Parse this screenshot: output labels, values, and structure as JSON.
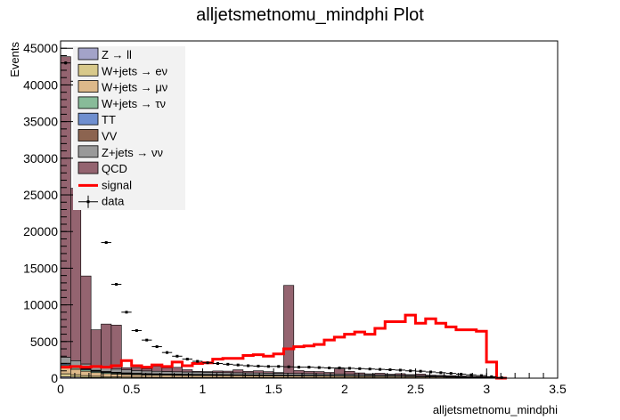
{
  "chart_data": {
    "type": "bar",
    "title": "alljetsmetnomu_mindphi Plot",
    "xlabel": "alljetsmetnomu_mindphi",
    "ylabel": "Events",
    "xlim": [
      0,
      3.5
    ],
    "ylim": [
      0,
      46000
    ],
    "x_ticks": [
      "0",
      "0.5",
      "1",
      "1.5",
      "2",
      "2.5",
      "3",
      "3.5"
    ],
    "y_ticks": [
      "0",
      "5000",
      "10000",
      "15000",
      "20000",
      "25000",
      "30000",
      "35000",
      "40000",
      "45000"
    ],
    "bin_edges": [
      0,
      0.0714,
      0.1428,
      0.2142,
      0.2856,
      0.357,
      0.4284,
      0.4998,
      0.5712,
      0.6426,
      0.714,
      0.7854,
      0.8568,
      0.9282,
      0.9996,
      1.071,
      1.1424,
      1.2138,
      1.2852,
      1.3566,
      1.428,
      1.4994,
      1.5708,
      1.6422,
      1.7136,
      1.785,
      1.8564,
      1.9278,
      1.9992,
      2.0706,
      2.142,
      2.2134,
      2.2848,
      2.3562,
      2.4276,
      2.499,
      2.5704,
      2.6418,
      2.7132,
      2.7846,
      2.856,
      2.9274,
      2.9988,
      3.0702,
      3.1416
    ],
    "stacked": [
      {
        "name": "Z → ll",
        "color": "#a3a3c8",
        "values": [
          200,
          150,
          110,
          80,
          60,
          50,
          40,
          35,
          30,
          28,
          26,
          24,
          22,
          20,
          20,
          20,
          19,
          19,
          18,
          18,
          18,
          18,
          18,
          17,
          17,
          17,
          16,
          16,
          16,
          15,
          15,
          14,
          14,
          13,
          12,
          11,
          10,
          9,
          8,
          7,
          6,
          5,
          4,
          2
        ]
      },
      {
        "name": "W+jets → eν",
        "color": "#d8c98a",
        "values": [
          400,
          320,
          240,
          180,
          150,
          130,
          110,
          100,
          95,
          90,
          85,
          80,
          80,
          78,
          76,
          75,
          74,
          72,
          70,
          70,
          68,
          66,
          64,
          62,
          60,
          58,
          56,
          54,
          52,
          50,
          48,
          46,
          44,
          40,
          38,
          35,
          32,
          28,
          24,
          20,
          16,
          12,
          8,
          4
        ]
      },
      {
        "name": "W+jets → μν",
        "color": "#ddb98a",
        "values": [
          900,
          750,
          600,
          500,
          420,
          380,
          350,
          330,
          310,
          300,
          290,
          280,
          275,
          270,
          265,
          260,
          255,
          250,
          245,
          240,
          235,
          230,
          225,
          220,
          215,
          210,
          205,
          200,
          195,
          190,
          185,
          180,
          170,
          160,
          150,
          140,
          130,
          115,
          100,
          85,
          70,
          50,
          30,
          15
        ]
      },
      {
        "name": "W+jets → τν",
        "color": "#88bb99",
        "values": [
          300,
          250,
          200,
          160,
          140,
          120,
          110,
          100,
          95,
          90,
          88,
          85,
          82,
          80,
          78,
          76,
          74,
          72,
          70,
          68,
          66,
          64,
          62,
          60,
          58,
          56,
          54,
          52,
          50,
          48,
          46,
          44,
          42,
          40,
          38,
          35,
          32,
          28,
          24,
          20,
          16,
          12,
          8,
          4
        ]
      },
      {
        "name": "TT",
        "color": "#6f8fcf",
        "values": [
          150,
          130,
          110,
          95,
          85,
          75,
          70,
          65,
          60,
          58,
          56,
          54,
          52,
          50,
          48,
          46,
          44,
          42,
          40,
          38,
          36,
          34,
          32,
          30,
          28,
          26,
          24,
          22,
          20,
          18,
          16,
          14,
          12,
          10,
          9,
          8,
          7,
          6,
          5,
          4,
          3,
          2,
          1,
          1
        ]
      },
      {
        "name": "VV",
        "color": "#8c6450",
        "values": [
          100,
          90,
          80,
          70,
          60,
          55,
          50,
          45,
          40,
          38,
          36,
          34,
          32,
          30,
          28,
          26,
          24,
          22,
          20,
          18,
          16,
          15,
          14,
          13,
          12,
          11,
          10,
          9,
          8,
          7,
          6,
          5,
          5,
          4,
          4,
          3,
          3,
          2,
          2,
          2,
          1,
          1,
          1,
          1
        ]
      },
      {
        "name": "Z+jets → νν",
        "color": "#999999",
        "values": [
          800,
          700,
          600,
          520,
          470,
          430,
          400,
          380,
          360,
          340,
          330,
          320,
          310,
          300,
          290,
          280,
          270,
          265,
          260,
          255,
          250,
          245,
          240,
          235,
          230,
          225,
          220,
          210,
          200,
          190,
          180,
          170,
          160,
          150,
          140,
          125,
          110,
          95,
          80,
          65,
          50,
          35,
          20,
          10
        ]
      },
      {
        "name": "QCD",
        "color": "#946470",
        "values": [
          41000,
          23500,
          12000,
          5000,
          6000,
          6000,
          300,
          400,
          300,
          700,
          500,
          600,
          300,
          100,
          100,
          200,
          200,
          400,
          200,
          300,
          200,
          100,
          12000,
          400,
          300,
          300,
          200,
          700,
          400,
          200,
          100,
          200,
          100,
          200,
          100,
          200,
          100,
          100,
          100,
          100,
          100,
          100,
          100,
          10
        ]
      }
    ],
    "signal": {
      "name": "signal",
      "color": "#ff0000",
      "values": [
        1500,
        1600,
        1500,
        1600,
        1500,
        1700,
        2400,
        1700,
        1500,
        1800,
        1600,
        2200,
        1700,
        2000,
        2100,
        2600,
        2700,
        2700,
        3100,
        3200,
        3000,
        3300,
        4000,
        4300,
        4400,
        4600,
        5200,
        5600,
        6000,
        6300,
        6000,
        6800,
        7700,
        7700,
        8600,
        7500,
        8100,
        7500,
        7000,
        6600,
        6600,
        6400,
        2200,
        0
      ]
    },
    "data": {
      "name": "data",
      "x": [
        0.0357,
        0.1071,
        0.1785,
        0.2499,
        0.3213,
        0.3927,
        0.4641,
        0.5355,
        0.6069,
        0.6783,
        0.7497,
        0.8211,
        0.8925,
        0.9639,
        1.0353,
        1.1067,
        1.1781,
        1.2495,
        1.3209,
        1.3923,
        1.4637,
        1.5351,
        1.6065,
        1.6779,
        1.7493,
        1.8207,
        1.8921,
        1.9635,
        2.0349,
        2.1063,
        2.1777,
        2.2491,
        2.3205,
        2.3919,
        2.4633,
        2.5347,
        2.6061,
        2.6775,
        2.7489,
        2.8203,
        2.8917,
        2.9631,
        3.0345,
        3.1059
      ],
      "values": [
        43000,
        40500,
        27000,
        24000,
        18500,
        12800,
        9000,
        6500,
        5200,
        4300,
        3500,
        3000,
        2600,
        2300,
        2100,
        2000,
        1900,
        1800,
        1700,
        1650,
        1600,
        1600,
        1550,
        1500,
        1500,
        1450,
        1400,
        1400,
        1350,
        1300,
        1250,
        1200,
        1150,
        1100,
        1000,
        950,
        850,
        750,
        650,
        550,
        450,
        350,
        200,
        80
      ]
    },
    "legend": {
      "position": "top-left",
      "entries": [
        "Z → ll",
        "W+jets → eν",
        "W+jets → μν",
        "W+jets → τν",
        "TT",
        "VV",
        "Z+jets → νν",
        "QCD",
        "signal",
        "data"
      ]
    },
    "grid": false
  }
}
